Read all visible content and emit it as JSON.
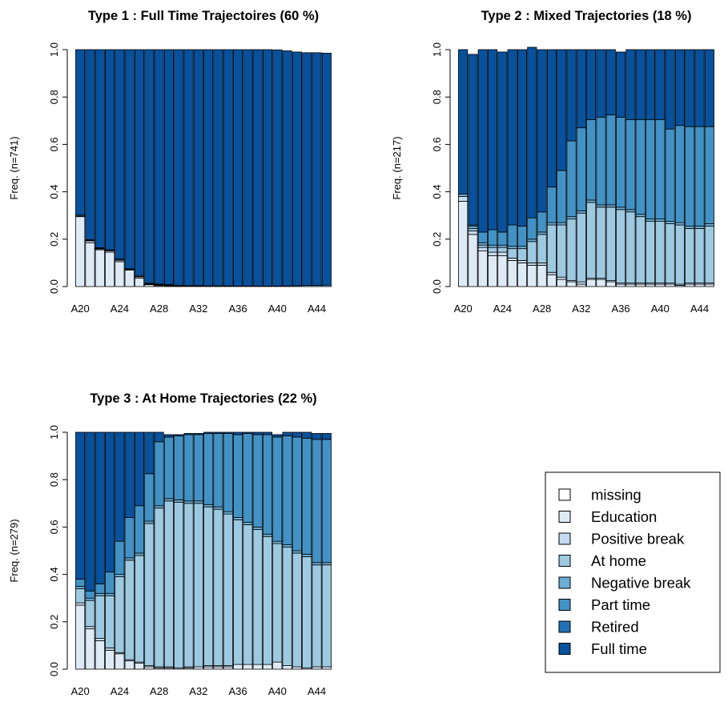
{
  "colors": {
    "missing": "#ffffff",
    "Education": "#deebf7",
    "Positive break": "#c6dbef",
    "At home": "#9ecae1",
    "Negative break": "#6baed6",
    "Part time": "#4292c6",
    "Retired": "#2171b5",
    "Full time": "#08519c"
  },
  "chart_data": [
    {
      "type": "bar",
      "stacked": true,
      "title": "Type 1 : Full Time Trajectoires (60 %)",
      "ylabel": "Freq. (n=741)",
      "ylim": [
        0,
        1
      ],
      "yticks": [
        "0.0",
        "0.2",
        "0.4",
        "0.6",
        "0.8",
        "1.0"
      ],
      "categories": [
        "A20",
        "A21",
        "A22",
        "A23",
        "A24",
        "A25",
        "A26",
        "A27",
        "A28",
        "A29",
        "A30",
        "A31",
        "A32",
        "A33",
        "A34",
        "A35",
        "A36",
        "A37",
        "A38",
        "A39",
        "A40",
        "A41",
        "A42",
        "A43",
        "A44",
        "A45"
      ],
      "x_tick_labels": [
        "A20",
        "A24",
        "A28",
        "A32",
        "A36",
        "A40",
        "A44"
      ],
      "series": [
        {
          "name": "missing",
          "values": [
            0,
            0,
            0,
            0,
            0,
            0,
            0,
            0,
            0,
            0,
            0,
            0,
            0,
            0,
            0,
            0,
            0,
            0,
            0,
            0,
            0,
            0,
            0,
            0,
            0,
            0
          ]
        },
        {
          "name": "Education",
          "values": [
            0.295,
            0.185,
            0.155,
            0.145,
            0.105,
            0.07,
            0.035,
            0.008,
            0.004,
            0.002,
            0.001,
            0,
            0,
            0,
            0,
            0,
            0,
            0,
            0,
            0,
            0,
            0,
            0,
            0,
            0,
            0
          ]
        },
        {
          "name": "Positive break",
          "values": [
            0.003,
            0.008,
            0.004,
            0.006,
            0.006,
            0.002,
            0.006,
            0.002,
            0.003,
            0.003,
            0.002,
            0.002,
            0.002,
            0,
            0,
            0,
            0,
            0,
            0,
            0,
            0,
            0,
            0,
            0,
            0,
            0
          ]
        },
        {
          "name": "At home",
          "values": [
            0,
            0.002,
            0.002,
            0.002,
            0.002,
            0,
            0.002,
            0.002,
            0.002,
            0.002,
            0,
            0.001,
            0.001,
            0.002,
            0.002,
            0.002,
            0,
            0,
            0,
            0,
            0,
            0,
            0,
            0,
            0,
            0
          ]
        },
        {
          "name": "Negative break",
          "values": [
            0.004,
            0.003,
            0.003,
            0.002,
            0.004,
            0.003,
            0.004,
            0.002,
            0.002,
            0.002,
            0.002,
            0.001,
            0.001,
            0.001,
            0.001,
            0.001,
            0.002,
            0.002,
            0.002,
            0.002,
            0.002,
            0.003,
            0.004,
            0.005,
            0.005,
            0.006
          ]
        },
        {
          "name": "Part time",
          "values": [
            0,
            0,
            0,
            0,
            0,
            0,
            0,
            0,
            0,
            0,
            0,
            0,
            0,
            0,
            0,
            0,
            0,
            0,
            0,
            0,
            0,
            0,
            0,
            0,
            0,
            0
          ]
        },
        {
          "name": "Retired",
          "values": [
            0,
            0,
            0,
            0,
            0,
            0,
            0,
            0,
            0,
            0,
            0,
            0,
            0,
            0,
            0,
            0,
            0,
            0,
            0,
            0,
            0,
            0,
            0,
            0,
            0,
            0
          ]
        },
        {
          "name": "Full time",
          "values": [
            0.698,
            0.802,
            0.836,
            0.845,
            0.883,
            0.925,
            0.953,
            0.986,
            0.989,
            0.991,
            0.995,
            0.996,
            0.996,
            0.997,
            0.997,
            0.997,
            0.998,
            0.998,
            0.998,
            0.998,
            0.997,
            0.992,
            0.986,
            0.982,
            0.982,
            0.979
          ]
        }
      ]
    },
    {
      "type": "bar",
      "stacked": true,
      "title": "Type 2 : Mixed Trajectories (18 %)",
      "ylabel": "Freq. (n=217)",
      "ylim": [
        0,
        1
      ],
      "yticks": [
        "0.0",
        "0.2",
        "0.4",
        "0.6",
        "0.8",
        "1.0"
      ],
      "categories": [
        "A20",
        "A21",
        "A22",
        "A23",
        "A24",
        "A25",
        "A26",
        "A27",
        "A28",
        "A29",
        "A30",
        "A31",
        "A32",
        "A33",
        "A34",
        "A35",
        "A36",
        "A37",
        "A38",
        "A39",
        "A40",
        "A41",
        "A42",
        "A43",
        "A44",
        "A45"
      ],
      "x_tick_labels": [
        "A20",
        "A24",
        "A28",
        "A32",
        "A36",
        "A40",
        "A44"
      ],
      "series": [
        {
          "name": "missing",
          "values": [
            0,
            0,
            0,
            0,
            0,
            0,
            0,
            0,
            0,
            0,
            0,
            0,
            0,
            0,
            0,
            0,
            0,
            0,
            0,
            0,
            0,
            0,
            0,
            0,
            0,
            0
          ]
        },
        {
          "name": "Education",
          "values": [
            0.36,
            0.22,
            0.15,
            0.13,
            0.13,
            0.11,
            0.1,
            0.09,
            0.09,
            0.05,
            0.03,
            0.02,
            0.01,
            0.03,
            0.03,
            0.02,
            0.01,
            0.01,
            0.01,
            0.01,
            0.01,
            0.01,
            0.005,
            0.01,
            0.01,
            0.01
          ]
        },
        {
          "name": "Positive break",
          "values": [
            0.02,
            0.015,
            0.015,
            0.015,
            0.015,
            0.01,
            0.01,
            0.01,
            0.01,
            0.01,
            0.01,
            0.005,
            0.01,
            0.005,
            0.005,
            0.005,
            0.005,
            0.005,
            0.005,
            0.005,
            0.005,
            0.005,
            0.005,
            0.005,
            0.005,
            0.005
          ]
        },
        {
          "name": "At home",
          "values": [
            0,
            0.01,
            0.01,
            0.02,
            0.02,
            0.04,
            0.05,
            0.09,
            0.12,
            0.2,
            0.22,
            0.26,
            0.29,
            0.32,
            0.3,
            0.31,
            0.31,
            0.3,
            0.28,
            0.26,
            0.26,
            0.25,
            0.25,
            0.23,
            0.23,
            0.24
          ]
        },
        {
          "name": "Negative break",
          "values": [
            0.01,
            0.01,
            0.01,
            0.01,
            0.01,
            0.01,
            0.01,
            0.01,
            0.01,
            0.01,
            0.01,
            0.01,
            0.01,
            0.01,
            0.01,
            0.01,
            0.01,
            0.01,
            0.01,
            0.01,
            0.01,
            0.01,
            0.01,
            0.01,
            0.01,
            0.01
          ]
        },
        {
          "name": "Part time",
          "values": [
            0,
            0.005,
            0.045,
            0.065,
            0.055,
            0.09,
            0.085,
            0.09,
            0.085,
            0.15,
            0.22,
            0.32,
            0.35,
            0.34,
            0.37,
            0.38,
            0.38,
            0.38,
            0.4,
            0.42,
            0.42,
            0.39,
            0.41,
            0.42,
            0.42,
            0.41
          ]
        },
        {
          "name": "Retired",
          "values": [
            0,
            0,
            0,
            0,
            0,
            0,
            0,
            0,
            0,
            0,
            0,
            0,
            0,
            0,
            0,
            0,
            0,
            0,
            0,
            0,
            0,
            0,
            0,
            0,
            0,
            0
          ]
        },
        {
          "name": "Full time",
          "values": [
            0.61,
            0.72,
            0.77,
            0.76,
            0.76,
            0.74,
            0.745,
            0.72,
            0.685,
            0.58,
            0.51,
            0.385,
            0.33,
            0.295,
            0.285,
            0.275,
            0.275,
            0.295,
            0.295,
            0.295,
            0.295,
            0.335,
            0.32,
            0.325,
            0.325,
            0.325
          ]
        }
      ]
    },
    {
      "type": "bar",
      "stacked": true,
      "title": "Type 3 : At Home Trajectories (22 %)",
      "ylabel": "Freq. (n=279)",
      "ylim": [
        0,
        1
      ],
      "yticks": [
        "0.0",
        "0.2",
        "0.4",
        "0.6",
        "0.8",
        "1.0"
      ],
      "categories": [
        "A20",
        "A21",
        "A22",
        "A23",
        "A24",
        "A25",
        "A26",
        "A27",
        "A28",
        "A29",
        "A30",
        "A31",
        "A32",
        "A33",
        "A34",
        "A35",
        "A36",
        "A37",
        "A38",
        "A39",
        "A40",
        "A41",
        "A42",
        "A43",
        "A44",
        "A45"
      ],
      "x_tick_labels": [
        "A20",
        "A24",
        "A28",
        "A32",
        "A36",
        "A40",
        "A44"
      ],
      "series": [
        {
          "name": "missing",
          "values": [
            0,
            0,
            0,
            0,
            0,
            0,
            0,
            0,
            0,
            0,
            0,
            0,
            0,
            0,
            0,
            0,
            0,
            0,
            0,
            0,
            0,
            0,
            0,
            0,
            0,
            0
          ]
        },
        {
          "name": "Education",
          "values": [
            0.27,
            0.17,
            0.12,
            0.08,
            0.065,
            0.035,
            0.025,
            0.01,
            0.005,
            0.005,
            0,
            0.005,
            0.01,
            0.01,
            0.01,
            0.01,
            0.02,
            0.02,
            0.02,
            0.02,
            0.03,
            0.015,
            0.01,
            0.005,
            0.01,
            0.01
          ]
        },
        {
          "name": "Positive break",
          "values": [
            0.01,
            0.01,
            0.01,
            0.01,
            0.005,
            0.005,
            0.005,
            0.005,
            0.005,
            0.005,
            0.005,
            0.005,
            0,
            0.005,
            0.005,
            0.005,
            0,
            0,
            0,
            0,
            0,
            0,
            0,
            0,
            0,
            0
          ]
        },
        {
          "name": "At home",
          "values": [
            0.06,
            0.11,
            0.18,
            0.22,
            0.32,
            0.42,
            0.45,
            0.6,
            0.67,
            0.7,
            0.7,
            0.69,
            0.69,
            0.67,
            0.66,
            0.64,
            0.61,
            0.59,
            0.57,
            0.54,
            0.5,
            0.5,
            0.48,
            0.47,
            0.43,
            0.43
          ]
        },
        {
          "name": "Negative break",
          "values": [
            0.01,
            0.01,
            0.01,
            0.01,
            0.01,
            0.01,
            0.01,
            0.01,
            0.01,
            0.01,
            0.01,
            0.01,
            0.01,
            0.01,
            0.01,
            0.01,
            0.01,
            0.01,
            0.01,
            0.01,
            0.01,
            0.01,
            0.01,
            0.01,
            0.01,
            0.01
          ]
        },
        {
          "name": "Part time",
          "values": [
            0.03,
            0.03,
            0.04,
            0.09,
            0.14,
            0.17,
            0.2,
            0.2,
            0.27,
            0.26,
            0.27,
            0.28,
            0.28,
            0.3,
            0.31,
            0.33,
            0.35,
            0.375,
            0.39,
            0.42,
            0.44,
            0.46,
            0.48,
            0.49,
            0.52,
            0.52
          ]
        },
        {
          "name": "Retired",
          "values": [
            0,
            0,
            0,
            0,
            0,
            0,
            0,
            0,
            0,
            0,
            0,
            0,
            0,
            0,
            0,
            0,
            0,
            0,
            0,
            0,
            0,
            0,
            0,
            0,
            0,
            0
          ]
        },
        {
          "name": "Full time",
          "values": [
            0.62,
            0.67,
            0.64,
            0.59,
            0.46,
            0.36,
            0.31,
            0.175,
            0.04,
            0.01,
            0.005,
            0.005,
            0.005,
            0.005,
            0.005,
            0.005,
            0.01,
            0.005,
            0.01,
            0.01,
            0.01,
            0.015,
            0.02,
            0.025,
            0.025,
            0.025
          ]
        }
      ]
    }
  ],
  "legend": {
    "items": [
      "missing",
      "Education",
      "Positive break",
      "At home",
      "Negative break",
      "Part time",
      "Retired",
      "Full time"
    ]
  }
}
